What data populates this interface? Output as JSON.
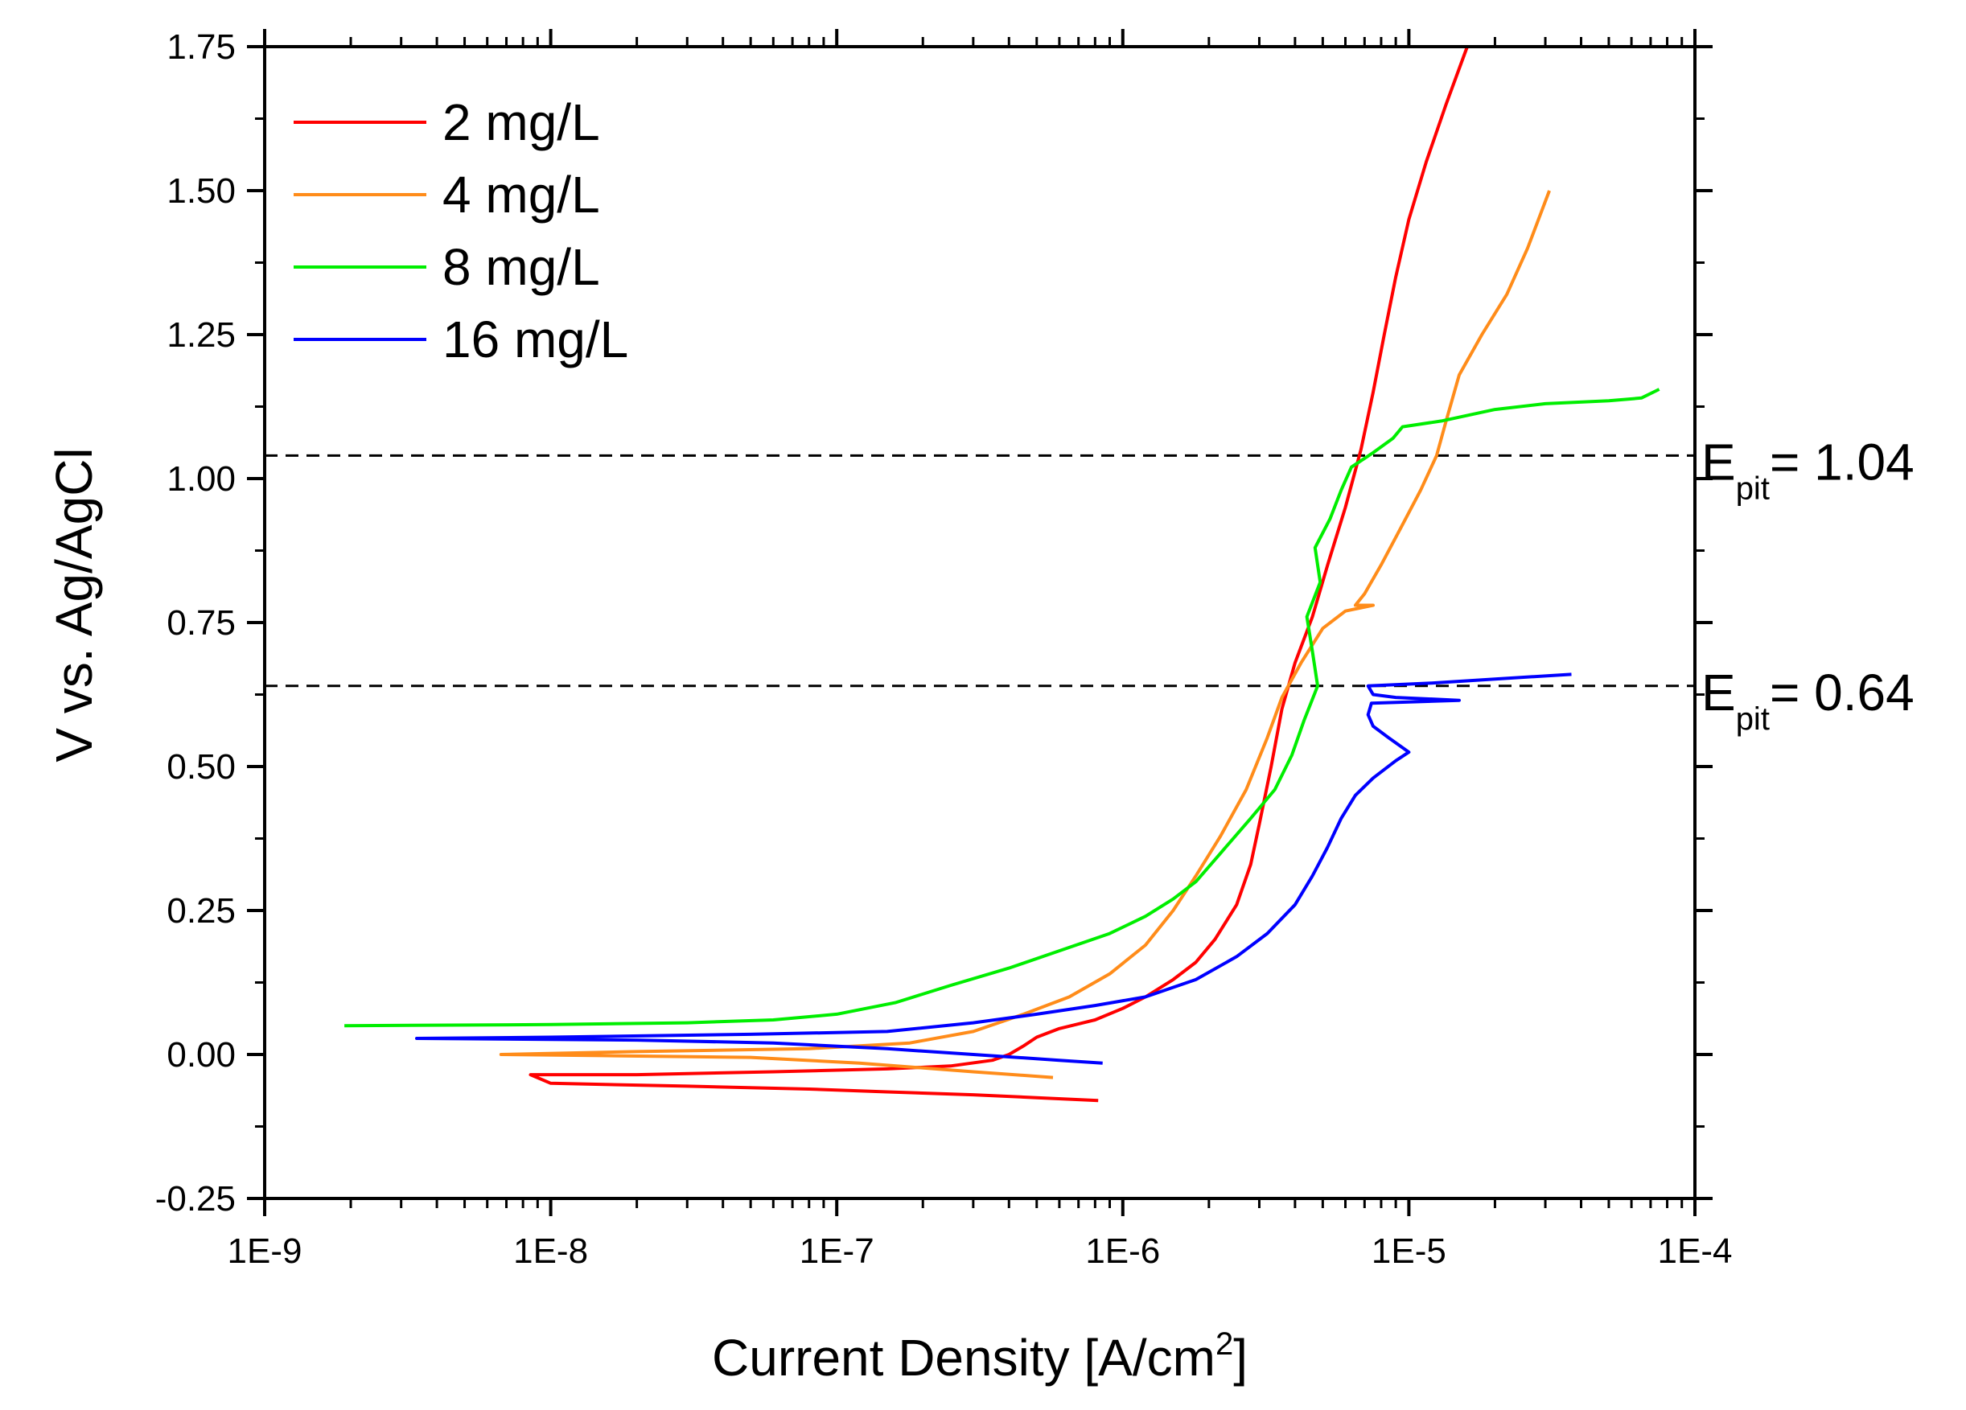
{
  "chart_data": {
    "type": "line",
    "title": "",
    "xlabel": "Current Density [A/cm",
    "xlabel_sup": "2",
    "xlabel_end": "]",
    "ylabel": "V vs. Ag/AgCl",
    "x_scale": "log",
    "xlim": [
      1e-09,
      0.0001
    ],
    "ylim": [
      -0.25,
      1.75
    ],
    "x_ticks": [
      {
        "value": 1e-09,
        "label": "1E-9"
      },
      {
        "value": 1e-08,
        "label": "1E-8"
      },
      {
        "value": 1e-07,
        "label": "1E-7"
      },
      {
        "value": 1e-06,
        "label": "1E-6"
      },
      {
        "value": 1e-05,
        "label": "1E-5"
      },
      {
        "value": 0.0001,
        "label": "1E-4"
      }
    ],
    "y_ticks": [
      {
        "value": -0.25,
        "label": "-0.25"
      },
      {
        "value": 0.0,
        "label": "0.00"
      },
      {
        "value": 0.25,
        "label": "0.25"
      },
      {
        "value": 0.5,
        "label": "0.50"
      },
      {
        "value": 0.75,
        "label": "0.75"
      },
      {
        "value": 1.0,
        "label": "1.00"
      },
      {
        "value": 1.25,
        "label": "1.25"
      },
      {
        "value": 1.5,
        "label": "1.50"
      },
      {
        "value": 1.75,
        "label": "1.75"
      }
    ],
    "legend_position": "top-left",
    "series": [
      {
        "name": "2 mg/L",
        "color": "#ff0000",
        "points": [
          [
            8.2e-07,
            -0.08
          ],
          [
            5e-07,
            -0.075
          ],
          [
            3e-07,
            -0.07
          ],
          [
            1.5e-07,
            -0.065
          ],
          [
            8e-08,
            -0.06
          ],
          [
            3e-08,
            -0.055
          ],
          [
            1e-08,
            -0.05
          ],
          [
            8.5e-09,
            -0.035
          ],
          [
            2e-08,
            -0.035
          ],
          [
            6e-08,
            -0.03
          ],
          [
            1.5e-07,
            -0.025
          ],
          [
            2.5e-07,
            -0.02
          ],
          [
            3.5e-07,
            -0.01
          ],
          [
            4e-07,
            0.0
          ],
          [
            4.5e-07,
            0.015
          ],
          [
            5e-07,
            0.03
          ],
          [
            6e-07,
            0.045
          ],
          [
            8e-07,
            0.06
          ],
          [
            1e-06,
            0.08
          ],
          [
            1.2e-06,
            0.1
          ],
          [
            1.5e-06,
            0.13
          ],
          [
            1.8e-06,
            0.16
          ],
          [
            2.1e-06,
            0.2
          ],
          [
            2.5e-06,
            0.26
          ],
          [
            2.8e-06,
            0.33
          ],
          [
            3e-06,
            0.4
          ],
          [
            3.3e-06,
            0.5
          ],
          [
            3.6e-06,
            0.6
          ],
          [
            4e-06,
            0.68
          ],
          [
            4.6e-06,
            0.76
          ],
          [
            5.2e-06,
            0.85
          ],
          [
            6e-06,
            0.95
          ],
          [
            6.8e-06,
            1.05
          ],
          [
            7.5e-06,
            1.15
          ],
          [
            8.2e-06,
            1.25
          ],
          [
            9e-06,
            1.35
          ],
          [
            1e-05,
            1.45
          ],
          [
            1.15e-05,
            1.55
          ],
          [
            1.35e-05,
            1.65
          ],
          [
            1.6e-05,
            1.75
          ]
        ]
      },
      {
        "name": "4 mg/L",
        "color": "#ff8c1a",
        "points": [
          [
            5.7e-07,
            -0.04
          ],
          [
            3e-07,
            -0.03
          ],
          [
            1.2e-07,
            -0.015
          ],
          [
            5e-08,
            -0.005
          ],
          [
            1.5e-08,
            -0.002
          ],
          [
            6.7e-09,
            0.0
          ],
          [
            2e-08,
            0.005
          ],
          [
            8e-08,
            0.01
          ],
          [
            1.8e-07,
            0.02
          ],
          [
            3e-07,
            0.04
          ],
          [
            4.5e-07,
            0.07
          ],
          [
            6.5e-07,
            0.1
          ],
          [
            9e-07,
            0.14
          ],
          [
            1.2e-06,
            0.19
          ],
          [
            1.5e-06,
            0.25
          ],
          [
            1.8e-06,
            0.31
          ],
          [
            2.2e-06,
            0.38
          ],
          [
            2.7e-06,
            0.46
          ],
          [
            3.2e-06,
            0.55
          ],
          [
            3.6e-06,
            0.62
          ],
          [
            4.2e-06,
            0.68
          ],
          [
            5e-06,
            0.74
          ],
          [
            6e-06,
            0.77
          ],
          [
            7.5e-06,
            0.78
          ],
          [
            6.5e-06,
            0.78
          ],
          [
            7e-06,
            0.8
          ],
          [
            8e-06,
            0.85
          ],
          [
            9.5e-06,
            0.92
          ],
          [
            1.1e-05,
            0.98
          ],
          [
            1.25e-05,
            1.04
          ],
          [
            1.35e-05,
            1.1
          ],
          [
            1.5e-05,
            1.18
          ],
          [
            1.8e-05,
            1.25
          ],
          [
            2.2e-05,
            1.32
          ],
          [
            2.6e-05,
            1.4
          ],
          [
            3.1e-05,
            1.5
          ]
        ]
      },
      {
        "name": "8 mg/L",
        "color": "#00ee00",
        "points": [
          [
            1.9e-09,
            0.05
          ],
          [
            1e-08,
            0.052
          ],
          [
            3e-08,
            0.055
          ],
          [
            6e-08,
            0.06
          ],
          [
            1e-07,
            0.07
          ],
          [
            1.6e-07,
            0.09
          ],
          [
            2.5e-07,
            0.12
          ],
          [
            4e-07,
            0.15
          ],
          [
            6e-07,
            0.18
          ],
          [
            9e-07,
            0.21
          ],
          [
            1.2e-06,
            0.24
          ],
          [
            1.5e-06,
            0.27
          ],
          [
            1.8e-06,
            0.3
          ],
          [
            2.2e-06,
            0.35
          ],
          [
            2.8e-06,
            0.41
          ],
          [
            3.4e-06,
            0.46
          ],
          [
            3.9e-06,
            0.52
          ],
          [
            4.3e-06,
            0.58
          ],
          [
            4.8e-06,
            0.64
          ],
          [
            4.6e-06,
            0.7
          ],
          [
            4.4e-06,
            0.76
          ],
          [
            4.9e-06,
            0.82
          ],
          [
            4.7e-06,
            0.88
          ],
          [
            5.3e-06,
            0.93
          ],
          [
            5.8e-06,
            0.98
          ],
          [
            6.3e-06,
            1.02
          ],
          [
            7.5e-06,
            1.045
          ],
          [
            8.8e-06,
            1.07
          ],
          [
            9.5e-06,
            1.09
          ],
          [
            1.3e-05,
            1.1
          ],
          [
            2e-05,
            1.12
          ],
          [
            3e-05,
            1.13
          ],
          [
            5e-05,
            1.135
          ],
          [
            6.5e-05,
            1.14
          ],
          [
            7.5e-05,
            1.155
          ]
        ]
      },
      {
        "name": "16 mg/L",
        "color": "#0000ff",
        "points": [
          [
            8.5e-07,
            -0.015
          ],
          [
            6e-07,
            -0.01
          ],
          [
            3e-07,
            0.0
          ],
          [
            1.5e-07,
            0.01
          ],
          [
            6e-08,
            0.02
          ],
          [
            2e-08,
            0.025
          ],
          [
            3.4e-09,
            0.028
          ],
          [
            1e-08,
            0.03
          ],
          [
            5e-08,
            0.035
          ],
          [
            1.5e-07,
            0.04
          ],
          [
            3e-07,
            0.055
          ],
          [
            5e-07,
            0.07
          ],
          [
            8e-07,
            0.085
          ],
          [
            1.2e-06,
            0.1
          ],
          [
            1.8e-06,
            0.13
          ],
          [
            2.5e-06,
            0.17
          ],
          [
            3.2e-06,
            0.21
          ],
          [
            4e-06,
            0.26
          ],
          [
            4.6e-06,
            0.31
          ],
          [
            5.2e-06,
            0.36
          ],
          [
            5.8e-06,
            0.41
          ],
          [
            6.5e-06,
            0.45
          ],
          [
            7.5e-06,
            0.48
          ],
          [
            9e-06,
            0.51
          ],
          [
            1e-05,
            0.525
          ],
          [
            8.5e-06,
            0.55
          ],
          [
            7.5e-06,
            0.57
          ],
          [
            7.2e-06,
            0.59
          ],
          [
            7.4e-06,
            0.61
          ],
          [
            1e-05,
            0.612
          ],
          [
            1.5e-05,
            0.615
          ],
          [
            9e-06,
            0.62
          ],
          [
            7.5e-06,
            0.625
          ],
          [
            7.2e-06,
            0.64
          ],
          [
            1.2e-05,
            0.645
          ],
          [
            2e-05,
            0.652
          ],
          [
            3.7e-05,
            0.66
          ]
        ]
      }
    ],
    "reference_lines": [
      {
        "y": 1.04,
        "label_main": "E",
        "label_sub": "pit",
        "label_value": "= 1.04"
      },
      {
        "y": 0.64,
        "label_main": "E",
        "label_sub": "pit",
        "label_value": "= 0.64"
      }
    ]
  }
}
